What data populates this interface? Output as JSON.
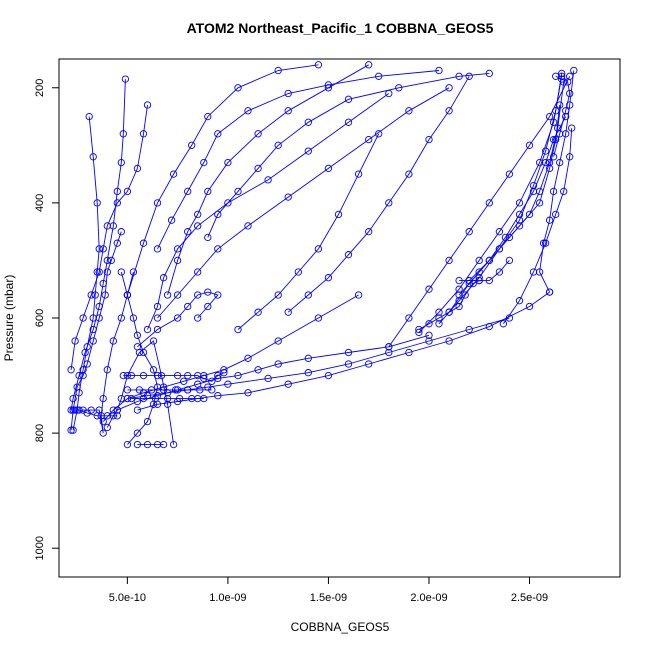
{
  "chart_data": {
    "type": "scatter",
    "title": "ATOM2 Northeast_Pacific_1 COBBNA_GEOS5",
    "xlabel": "COBBNA_GEOS5",
    "ylabel": "Pressure (mbar)",
    "xlim": [
      1.6e-10,
      2.95e-09
    ],
    "ylim": [
      1050,
      150
    ],
    "y_reversed": true,
    "grid": false,
    "legend": "none",
    "x_ticks": [
      {
        "value": 5e-10,
        "label": "5.0e-10"
      },
      {
        "value": 1e-09,
        "label": "1.0e-09"
      },
      {
        "value": 1.5e-09,
        "label": "1.5e-09"
      },
      {
        "value": 2e-09,
        "label": "2.0e-09"
      },
      {
        "value": 2.5e-09,
        "label": "2.5e-09"
      }
    ],
    "y_ticks": [
      {
        "value": 200,
        "label": "200"
      },
      {
        "value": 400,
        "label": "400"
      },
      {
        "value": 600,
        "label": "600"
      },
      {
        "value": 800,
        "label": "800"
      },
      {
        "value": 1000,
        "label": "1000"
      }
    ],
    "color": "#0000ff",
    "series": [
      {
        "x": [
          2.2e-10,
          2.3e-10,
          2.5e-10,
          2.8e-10,
          3e-10,
          3.3e-10,
          3.6e-10,
          3.9e-10,
          4e-10,
          4.2e-10,
          4.5e-10,
          4.7e-10
        ],
        "y": [
          795,
          760,
          720,
          700,
          680,
          640,
          600,
          560,
          520,
          500,
          470,
          450
        ]
      },
      {
        "x": [
          2.3e-10,
          2.5e-10,
          2.6e-10,
          2.8e-10,
          3e-10,
          3.3e-10,
          3.4e-10,
          3.5e-10,
          3.6e-10,
          3.5e-10,
          3.3e-10,
          3.1e-10
        ],
        "y": [
          795,
          760,
          730,
          690,
          650,
          600,
          560,
          520,
          480,
          400,
          320,
          250
        ]
      },
      {
        "x": [
          2.2e-10,
          2.3e-10,
          2.6e-10,
          2.9e-10,
          3.3e-10,
          3.6e-10,
          3.8e-10,
          4e-10,
          4.3e-10,
          4.5e-10,
          4.7e-10,
          4.8e-10,
          4.9e-10
        ],
        "y": [
          760,
          740,
          700,
          660,
          620,
          580,
          540,
          500,
          440,
          380,
          330,
          280,
          185
        ]
      },
      {
        "x": [
          2.4e-10,
          2.8e-10,
          3.2e-10,
          3.6e-10,
          3.8e-10,
          3.7e-10,
          3.8e-10,
          4e-10,
          4.3e-10,
          4.7e-10,
          5e-10,
          5.3e-10
        ],
        "y": [
          760,
          760,
          760,
          760,
          800,
          770,
          740,
          690,
          640,
          600,
          560,
          520
        ]
      },
      {
        "x": [
          2.2e-10,
          2.4e-10,
          2.8e-10,
          3.2e-10,
          3.6e-10,
          3.8e-10,
          4e-10,
          4.5e-10,
          5e-10,
          5.5e-10,
          5.8e-10,
          6e-10
        ],
        "y": [
          690,
          640,
          600,
          560,
          520,
          480,
          440,
          400,
          380,
          340,
          280,
          230
        ]
      },
      {
        "x": [
          4e-10,
          4.3e-10,
          4.5e-10,
          4.7e-10,
          5e-10,
          5.6e-10,
          6.3e-10,
          6.7e-10,
          7e-10,
          7.3e-10
        ],
        "y": [
          790,
          770,
          760,
          740,
          700,
          660,
          640,
          700,
          750,
          820
        ]
      },
      {
        "x": [
          5e-10,
          5.5e-10,
          6e-10,
          6.3e-10,
          6.5e-10,
          6.3e-10,
          5.8e-10,
          5.5e-10,
          5.3e-10,
          5e-10,
          4.7e-10
        ],
        "y": [
          820,
          800,
          780,
          750,
          720,
          690,
          660,
          630,
          600,
          560,
          520
        ]
      },
      {
        "x": [
          3.8e-10,
          4.3e-10,
          5e-10,
          5.8e-10,
          6.8e-10,
          7.8e-10,
          8.8e-10,
          9.8e-10,
          1.1e-09,
          1.25e-09,
          1.45e-09,
          1.65e-09
        ],
        "y": [
          780,
          760,
          740,
          730,
          720,
          710,
          700,
          690,
          670,
          640,
          600,
          560
        ]
      },
      {
        "x": [
          4.5e-10,
          5.5e-10,
          6.5e-10,
          7.5e-10,
          8.5e-10,
          9.5e-10,
          1.05e-09,
          1.15e-09,
          1.25e-09,
          1.4e-09,
          1.6e-09,
          1.8e-09,
          2e-09
        ],
        "y": [
          760,
          745,
          735,
          725,
          715,
          705,
          700,
          690,
          680,
          670,
          660,
          650,
          630
        ]
      },
      {
        "x": [
          5e-10,
          6e-10,
          7e-10,
          8e-10,
          9e-10,
          1e-09,
          1.2e-09,
          1.4e-09,
          1.6e-09,
          1.8e-09,
          2e-09,
          2.2e-09,
          2.4e-09
        ],
        "y": [
          740,
          735,
          730,
          725,
          720,
          715,
          705,
          695,
          680,
          660,
          640,
          620,
          600
        ]
      },
      {
        "x": [
          5.5e-10,
          6.5e-10,
          7.5e-10,
          8.5e-10,
          9.5e-10,
          1.1e-09,
          1.3e-09,
          1.5e-09,
          1.7e-09,
          1.9e-09,
          2.1e-09,
          2.3e-09,
          2.5e-09,
          2.6e-09
        ],
        "y": [
          760,
          750,
          745,
          740,
          735,
          730,
          715,
          700,
          680,
          660,
          640,
          615,
          580,
          555
        ]
      },
      {
        "x": [
          4.8e-10,
          5.2e-10,
          5.8e-10,
          6.5e-10,
          7.5e-10,
          8e-10,
          8.5e-10,
          8.8e-10,
          9.2e-10,
          9.5e-10,
          9.8e-10
        ],
        "y": [
          700,
          700,
          700,
          700,
          700,
          700,
          700,
          705,
          710,
          700,
          695
        ]
      },
      {
        "x": [
          5e-10,
          5.6e-10,
          6.2e-10,
          6.8e-10,
          7.4e-10,
          8e-10,
          8.6e-10,
          9.2e-10
        ],
        "y": [
          725,
          725,
          725,
          725,
          725,
          725,
          725,
          725
        ]
      },
      {
        "x": [
          5.2e-10,
          5.8e-10,
          6.4e-10,
          7e-10,
          7.6e-10,
          8.2e-10,
          8.8e-10
        ],
        "y": [
          740,
          740,
          740,
          740,
          740,
          740,
          740
        ]
      },
      {
        "x": [
          5.5e-10,
          6e-10,
          6.5e-10,
          6.8e-10
        ],
        "y": [
          820,
          820,
          820,
          820
        ]
      },
      {
        "x": [
          4.5e-10,
          4e-10,
          3.5e-10,
          3e-10,
          2.6e-10,
          2.3e-10
        ],
        "y": [
          770,
          770,
          770,
          765,
          760,
          760
        ]
      },
      {
        "x": [
          5.5e-10,
          6.5e-10,
          7.5e-10,
          8e-10,
          8.5e-10,
          9e-10,
          9.5e-10,
          9e-10,
          8.5e-10
        ],
        "y": [
          650,
          620,
          600,
          580,
          560,
          555,
          560,
          580,
          600
        ]
      },
      {
        "x": [
          6e-10,
          6.5e-10,
          6.8e-10,
          7.5e-10,
          8.5e-10,
          1e-09,
          1.2e-09,
          1.4e-09,
          1.6e-09,
          1.8e-09
        ],
        "y": [
          620,
          580,
          530,
          480,
          440,
          400,
          360,
          310,
          260,
          210
        ]
      },
      {
        "x": [
          6.5e-10,
          7.5e-10,
          8.5e-10,
          9.5e-10,
          1.1e-09,
          1.3e-09,
          1.5e-09,
          1.7e-09,
          1.9e-09,
          2.1e-09
        ],
        "y": [
          600,
          560,
          520,
          480,
          440,
          390,
          340,
          290,
          240,
          200
        ]
      },
      {
        "x": [
          7e-10,
          7.5e-10,
          8e-10,
          8.5e-10,
          9e-10,
          1e-09,
          1.15e-09,
          1.3e-09,
          1.5e-09,
          1.7e-09
        ],
        "y": [
          560,
          500,
          450,
          420,
          380,
          330,
          280,
          240,
          200,
          160
        ]
      },
      {
        "x": [
          5e-10,
          5.8e-10,
          6.5e-10,
          7.3e-10,
          8.2e-10,
          9e-10,
          1.05e-09,
          1.25e-09,
          1.45e-09
        ],
        "y": [
          560,
          470,
          400,
          350,
          300,
          250,
          200,
          170,
          160
        ]
      },
      {
        "x": [
          6.5e-10,
          7.2e-10,
          8e-10,
          8.8e-10,
          9.5e-10,
          1.1e-09,
          1.3e-09,
          1.5e-09,
          1.75e-09,
          2.05e-09
        ],
        "y": [
          480,
          430,
          380,
          330,
          280,
          240,
          210,
          195,
          180,
          170
        ]
      },
      {
        "x": [
          9e-10,
          9.5e-10,
          1.05e-09,
          1.15e-09,
          1.25e-09,
          1.4e-09,
          1.6e-09,
          1.85e-09,
          2.15e-09,
          2.3e-09
        ],
        "y": [
          460,
          420,
          380,
          340,
          300,
          260,
          220,
          200,
          180,
          175
        ]
      },
      {
        "x": [
          1.05e-09,
          1.15e-09,
          1.25e-09,
          1.35e-09,
          1.45e-09,
          1.55e-09,
          1.65e-09,
          1.75e-09
        ],
        "y": [
          620,
          590,
          560,
          520,
          480,
          420,
          350,
          280
        ]
      },
      {
        "x": [
          1.3e-09,
          1.4e-09,
          1.5e-09,
          1.6e-09,
          1.7e-09,
          1.8e-09,
          1.9e-09,
          2e-09,
          2.1e-09,
          2.2e-09
        ],
        "y": [
          590,
          560,
          530,
          490,
          450,
          400,
          350,
          290,
          240,
          180
        ]
      },
      {
        "x": [
          1.8e-09,
          1.9e-09,
          2e-09,
          2.1e-09,
          2.2e-09,
          2.3e-09,
          2.4e-09,
          2.5e-09,
          2.6e-09,
          2.7e-09
        ],
        "y": [
          650,
          600,
          550,
          500,
          450,
          400,
          350,
          300,
          250,
          180
        ]
      },
      {
        "x": [
          1.95e-09,
          2.05e-09,
          2.15e-09,
          2.25e-09,
          2.35e-09,
          2.45e-09,
          2.55e-09,
          2.62e-09,
          2.66e-09
        ],
        "y": [
          625,
          590,
          550,
          500,
          450,
          400,
          330,
          260,
          180
        ]
      },
      {
        "x": [
          2.05e-09,
          2.15e-09,
          2.25e-09,
          2.35e-09,
          2.45e-09,
          2.52e-09,
          2.58e-09,
          2.63e-09,
          2.66e-09
        ],
        "y": [
          610,
          570,
          530,
          480,
          430,
          370,
          310,
          240,
          175
        ]
      },
      {
        "x": [
          2.1e-09,
          2.2e-09,
          2.3e-09,
          2.4e-09,
          2.5e-09,
          2.55e-09,
          2.6e-09,
          2.64e-09,
          2.67e-09
        ],
        "y": [
          590,
          540,
          500,
          460,
          420,
          380,
          330,
          270,
          190
        ]
      },
      {
        "x": [
          2.15e-09,
          2.25e-09,
          2.35e-09,
          2.45e-09,
          2.55e-09,
          2.6e-09,
          2.63e-09,
          2.65e-09
        ],
        "y": [
          560,
          520,
          480,
          440,
          400,
          340,
          290,
          230
        ]
      },
      {
        "x": [
          2.2e-09,
          2.3e-09,
          2.38e-09,
          2.45e-09,
          2.52e-09,
          2.58e-09,
          2.62e-09,
          2.68e-09
        ],
        "y": [
          535,
          500,
          460,
          420,
          380,
          330,
          290,
          250
        ]
      },
      {
        "x": [
          2.6e-09,
          2.55e-09,
          2.57e-09,
          2.6e-09,
          2.62e-09,
          2.65e-09,
          2.68e-09,
          2.7e-09,
          2.72e-09
        ],
        "y": [
          555,
          520,
          470,
          430,
          380,
          330,
          280,
          230,
          170
        ]
      },
      {
        "x": [
          2.37e-09,
          2.45e-09,
          2.52e-09,
          2.58e-09,
          2.63e-09,
          2.67e-09,
          2.7e-09,
          2.71e-09
        ],
        "y": [
          610,
          570,
          520,
          470,
          420,
          380,
          320,
          270
        ]
      },
      {
        "x": [
          2.62e-09,
          2.65e-09,
          2.68e-09,
          2.7e-09,
          2.69e-09,
          2.66e-09,
          2.63e-09
        ],
        "y": [
          320,
          280,
          240,
          210,
          190,
          185,
          180
        ]
      },
      {
        "x": [
          1.95e-09,
          2e-09,
          2.05e-09,
          2.1e-09,
          2.15e-09,
          2.18e-09,
          2.22e-09,
          2.25e-09
        ],
        "y": [
          620,
          610,
          600,
          590,
          580,
          560,
          540,
          535
        ]
      },
      {
        "x": [
          2.15e-09,
          2.2e-09,
          2.25e-09,
          2.3e-09,
          2.35e-09,
          2.4e-09
        ],
        "y": [
          535,
          535,
          535,
          535,
          520,
          500
        ]
      }
    ]
  }
}
